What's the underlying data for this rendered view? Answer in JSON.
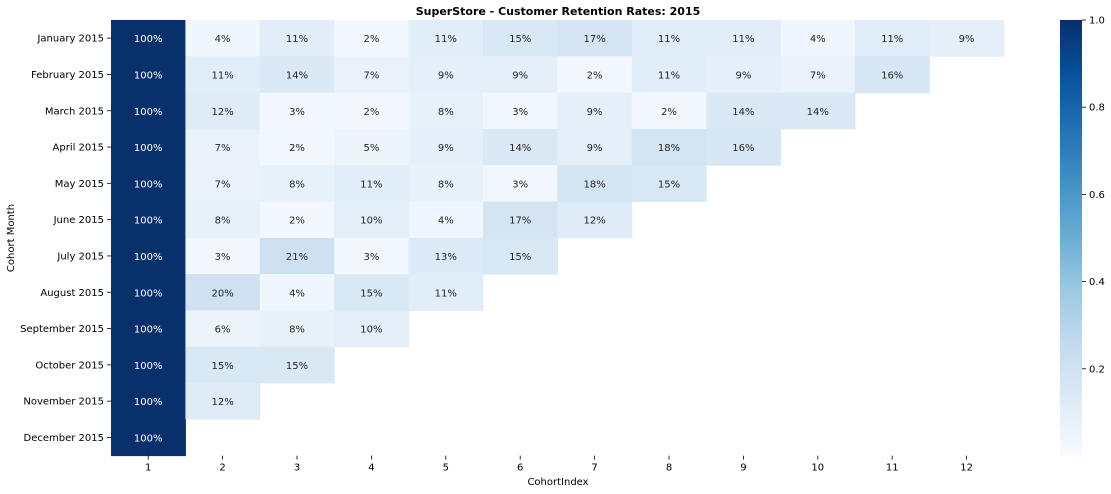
{
  "chart_data": {
    "type": "heatmap",
    "title": "SuperStore - Customer Retention Rates: 2015",
    "xlabel": "CohortIndex",
    "ylabel": "Cohort Month",
    "x": [
      "1",
      "2",
      "3",
      "4",
      "5",
      "6",
      "7",
      "8",
      "9",
      "10",
      "11",
      "12"
    ],
    "y": [
      "January 2015",
      "February 2015",
      "March 2015",
      "April 2015",
      "May 2015",
      "June 2015",
      "July 2015",
      "August 2015",
      "September 2015",
      "October 2015",
      "November 2015",
      "December 2015"
    ],
    "values": [
      [
        1.0,
        0.04,
        0.11,
        0.02,
        0.11,
        0.15,
        0.17,
        0.11,
        0.11,
        0.04,
        0.11,
        0.09
      ],
      [
        1.0,
        0.11,
        0.14,
        0.07,
        0.09,
        0.09,
        0.02,
        0.11,
        0.09,
        0.07,
        0.16,
        null
      ],
      [
        1.0,
        0.12,
        0.03,
        0.02,
        0.08,
        0.03,
        0.09,
        0.02,
        0.14,
        0.14,
        null,
        null
      ],
      [
        1.0,
        0.07,
        0.02,
        0.05,
        0.09,
        0.14,
        0.09,
        0.18,
        0.16,
        null,
        null,
        null
      ],
      [
        1.0,
        0.07,
        0.08,
        0.11,
        0.08,
        0.03,
        0.18,
        0.15,
        null,
        null,
        null,
        null
      ],
      [
        1.0,
        0.08,
        0.02,
        0.1,
        0.04,
        0.17,
        0.12,
        null,
        null,
        null,
        null,
        null
      ],
      [
        1.0,
        0.03,
        0.21,
        0.03,
        0.13,
        0.15,
        null,
        null,
        null,
        null,
        null,
        null
      ],
      [
        1.0,
        0.2,
        0.04,
        0.15,
        0.11,
        null,
        null,
        null,
        null,
        null,
        null,
        null
      ],
      [
        1.0,
        0.06,
        0.08,
        0.1,
        null,
        null,
        null,
        null,
        null,
        null,
        null,
        null
      ],
      [
        1.0,
        0.15,
        0.15,
        null,
        null,
        null,
        null,
        null,
        null,
        null,
        null,
        null
      ],
      [
        1.0,
        0.12,
        null,
        null,
        null,
        null,
        null,
        null,
        null,
        null,
        null,
        null
      ],
      [
        1.0,
        null,
        null,
        null,
        null,
        null,
        null,
        null,
        null,
        null,
        null,
        null
      ]
    ],
    "labels": [
      [
        "100%",
        "4%",
        "11%",
        "2%",
        "11%",
        "15%",
        "17%",
        "11%",
        "11%",
        "4%",
        "11%",
        "9%"
      ],
      [
        "100%",
        "11%",
        "14%",
        "7%",
        "9%",
        "9%",
        "2%",
        "11%",
        "9%",
        "7%",
        "16%",
        null
      ],
      [
        "100%",
        "12%",
        "3%",
        "2%",
        "8%",
        "3%",
        "9%",
        "2%",
        "14%",
        "14%",
        null,
        null
      ],
      [
        "100%",
        "7%",
        "2%",
        "5%",
        "9%",
        "14%",
        "9%",
        "18%",
        "16%",
        null,
        null,
        null
      ],
      [
        "100%",
        "7%",
        "8%",
        "11%",
        "8%",
        "3%",
        "18%",
        "15%",
        null,
        null,
        null,
        null
      ],
      [
        "100%",
        "8%",
        "2%",
        "10%",
        "4%",
        "17%",
        "12%",
        null,
        null,
        null,
        null,
        null
      ],
      [
        "100%",
        "3%",
        "21%",
        "3%",
        "13%",
        "15%",
        null,
        null,
        null,
        null,
        null,
        null
      ],
      [
        "100%",
        "20%",
        "4%",
        "15%",
        "11%",
        null,
        null,
        null,
        null,
        null,
        null,
        null
      ],
      [
        "100%",
        "6%",
        "8%",
        "10%",
        null,
        null,
        null,
        null,
        null,
        null,
        null,
        null
      ],
      [
        "100%",
        "15%",
        "15%",
        null,
        null,
        null,
        null,
        null,
        null,
        null,
        null,
        null
      ],
      [
        "100%",
        "12%",
        null,
        null,
        null,
        null,
        null,
        null,
        null,
        null,
        null,
        null
      ],
      [
        "100%",
        null,
        null,
        null,
        null,
        null,
        null,
        null,
        null,
        null,
        null,
        null
      ]
    ],
    "colormap": "Blues",
    "colorbar": {
      "range": [
        0.0,
        1.0
      ],
      "ticks": [
        0.2,
        0.4,
        0.6,
        0.8,
        1.0
      ],
      "tick_labels": [
        "0.2",
        "0.4",
        "0.6",
        "0.8",
        "1.0"
      ]
    }
  }
}
